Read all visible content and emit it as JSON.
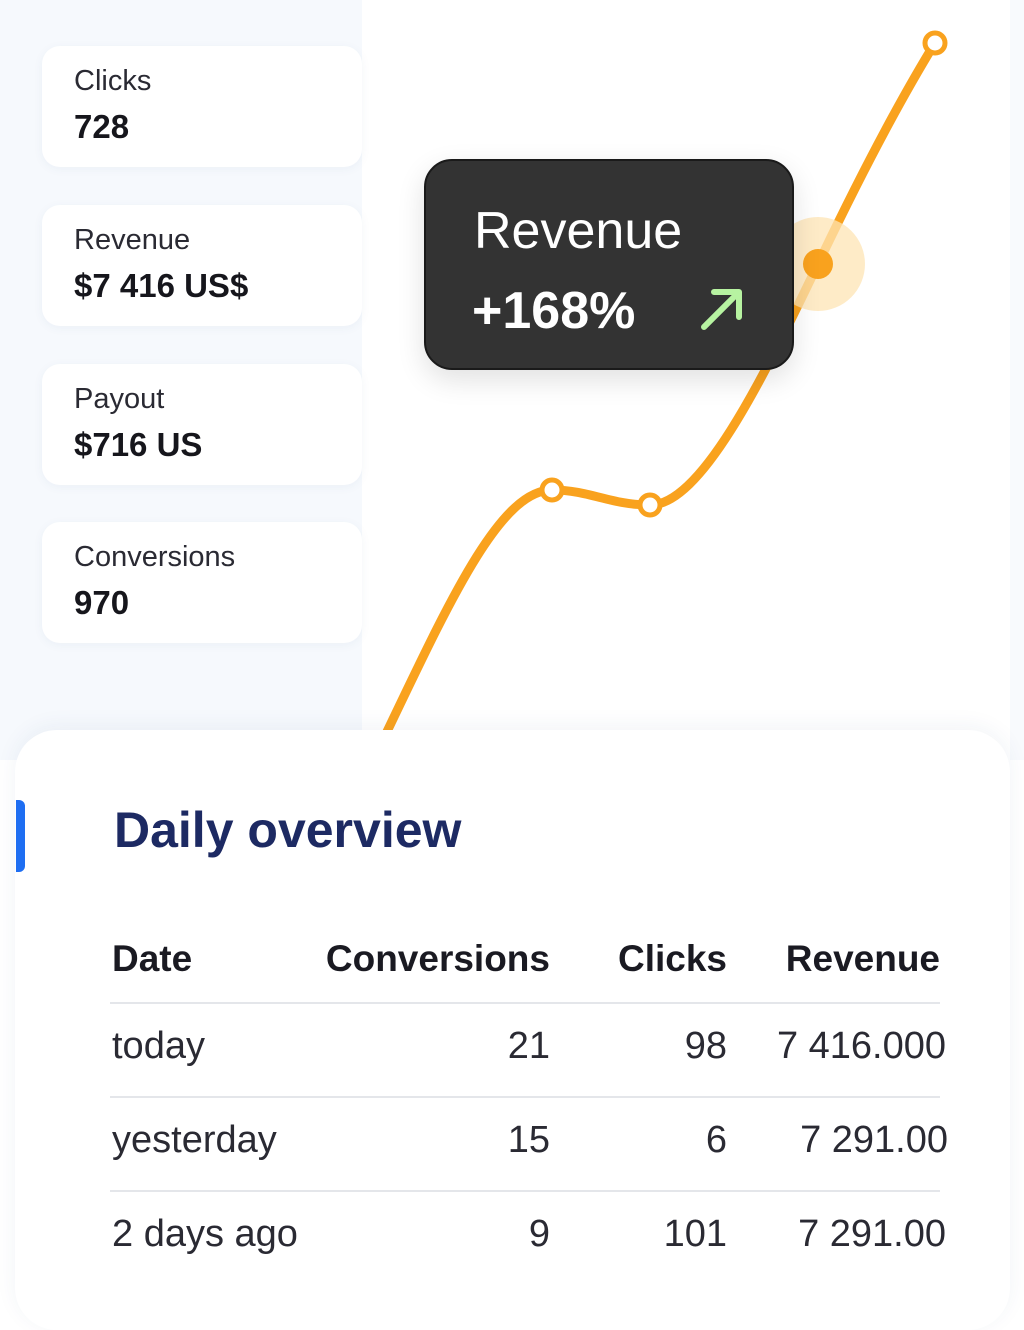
{
  "stats": [
    {
      "label": "Clicks",
      "value": "728"
    },
    {
      "label": "Revenue",
      "value": "$7 416 US$"
    },
    {
      "label": "Payout",
      "value": "$716 US"
    },
    {
      "label": "Conversions",
      "value": "970"
    }
  ],
  "tooltip": {
    "title": "Revenue",
    "change": "+168%",
    "arrow_icon": "arrow-up-right-icon",
    "arrow_color": "#b7f3a1"
  },
  "chart": {
    "line_color": "#f9a21e",
    "highlight_color": "#fde4b4"
  },
  "overview": {
    "title": "Daily overview",
    "accent_color": "#1e6ef2",
    "columns": [
      "Date",
      "Conversions",
      "Clicks",
      "Revenue"
    ],
    "rows": [
      {
        "date": "today",
        "conversions": "21",
        "clicks": "98",
        "revenue": "7 416.000"
      },
      {
        "date": "yesterday",
        "conversions": "15",
        "clicks": "6",
        "revenue": "7 291.00"
      },
      {
        "date": "2 days ago",
        "conversions": "9",
        "clicks": "101",
        "revenue": "7 291.00"
      }
    ]
  }
}
